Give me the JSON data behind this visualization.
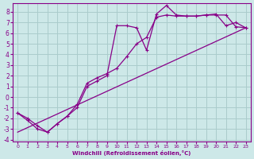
{
  "xlabel": "Windchill (Refroidissement éolien,°C)",
  "background_color": "#cde8e8",
  "grid_color": "#aacccc",
  "line_color": "#880088",
  "x_ticks": [
    0,
    1,
    2,
    3,
    4,
    5,
    6,
    7,
    8,
    9,
    10,
    11,
    12,
    13,
    14,
    15,
    16,
    17,
    18,
    19,
    20,
    21,
    22,
    23
  ],
  "y_ticks": [
    -4,
    -3,
    -2,
    -1,
    0,
    1,
    2,
    3,
    4,
    5,
    6,
    7,
    8
  ],
  "xlim": [
    -0.5,
    23.5
  ],
  "ylim": [
    -4.2,
    8.8
  ],
  "series1_x": [
    0,
    1,
    2,
    3,
    4,
    5,
    6,
    7,
    8,
    9,
    10,
    11,
    12,
    13,
    14,
    15,
    16,
    17,
    18,
    19,
    20,
    21,
    22,
    23
  ],
  "series1_y": [
    -1.5,
    -2.2,
    -3.0,
    -3.3,
    -2.5,
    -1.8,
    -1.0,
    1.0,
    1.5,
    2.0,
    6.7,
    6.7,
    6.5,
    4.4,
    7.8,
    8.6,
    7.7,
    7.6,
    7.6,
    7.7,
    7.7,
    7.7,
    6.6,
    6.5
  ],
  "series2_x": [
    0,
    1,
    2,
    3,
    4,
    5,
    6,
    7,
    8,
    9,
    10,
    11,
    12,
    13,
    14,
    15,
    16,
    17,
    18,
    19,
    20,
    21,
    22,
    23
  ],
  "series2_y": [
    -1.5,
    -2.0,
    -2.7,
    -3.3,
    -2.5,
    -1.8,
    -0.7,
    1.3,
    1.8,
    2.2,
    2.7,
    3.8,
    5.0,
    5.6,
    7.5,
    7.7,
    7.6,
    7.6,
    7.6,
    7.7,
    7.8,
    6.7,
    7.0,
    6.5
  ],
  "series3_x": [
    0,
    23
  ],
  "series3_y": [
    -3.3,
    6.5
  ]
}
